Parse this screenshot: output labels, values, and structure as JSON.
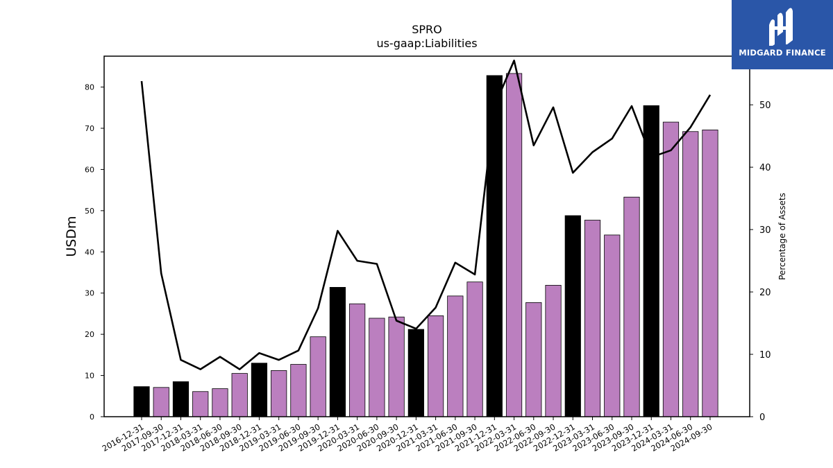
{
  "chart_data": {
    "type": "bar",
    "title": "SPRO",
    "subtitle": "us-gaap:Liabilities",
    "ylabel": "USDm",
    "y2label": "Percentage of Assets",
    "ylim": [
      0,
      87.5
    ],
    "y2lim": [
      0,
      57.8
    ],
    "yticks": [
      0,
      10,
      20,
      30,
      40,
      50,
      60,
      70,
      80
    ],
    "y2ticks": [
      0,
      10,
      20,
      30,
      40,
      50
    ],
    "grid": false,
    "categories": [
      "2016-12-31",
      "2017-09-30",
      "2017-12-31",
      "2018-03-31",
      "2018-06-30",
      "2018-09-30",
      "2018-12-31",
      "2019-03-31",
      "2019-06-30",
      "2019-09-30",
      "2019-12-31",
      "2020-03-31",
      "2020-06-30",
      "2020-09-30",
      "2020-12-31",
      "2021-03-31",
      "2021-06-30",
      "2021-09-30",
      "2021-12-31",
      "2022-03-31",
      "2022-06-30",
      "2022-09-30",
      "2022-12-31",
      "2023-03-31",
      "2023-06-30",
      "2023-09-30",
      "2023-12-31",
      "2024-03-31",
      "2024-06-30",
      "2024-09-30"
    ],
    "series": [
      {
        "kind": "bar",
        "values": [
          7.3,
          7.1,
          8.5,
          6.1,
          6.8,
          10.5,
          13.0,
          11.2,
          12.7,
          19.4,
          31.4,
          27.4,
          23.9,
          24.2,
          21.2,
          24.5,
          29.3,
          32.7,
          82.8,
          83.3,
          27.7,
          31.9,
          48.8,
          47.7,
          44.1,
          53.3,
          75.5,
          71.5,
          69.2,
          69.6
        ],
        "year_end_color": "#000000",
        "quarter_color": "#bb7fbf"
      },
      {
        "kind": "line",
        "axis": "right",
        "color": "#000000",
        "values": [
          53.8,
          23.0,
          9.1,
          7.6,
          9.6,
          7.6,
          10.2,
          9.1,
          10.6,
          17.4,
          29.8,
          25.0,
          24.5,
          15.4,
          14.1,
          17.5,
          24.7,
          22.8,
          49.8,
          57.1,
          43.5,
          49.6,
          39.1,
          42.4,
          44.6,
          49.8,
          41.6,
          42.7,
          46.4,
          51.6
        ]
      }
    ]
  },
  "logo": {
    "text": "MIDGARD FINANCE",
    "bg_color": "#2a56a8"
  }
}
